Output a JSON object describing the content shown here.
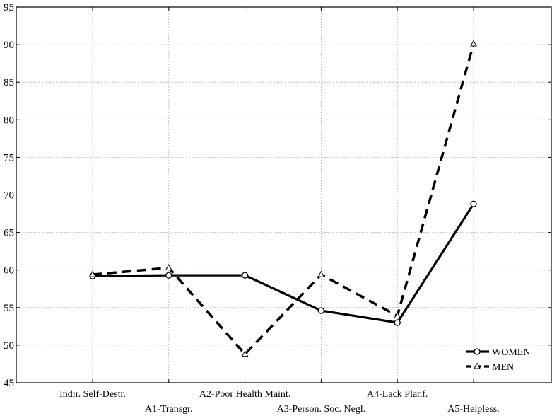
{
  "chart_data": {
    "type": "line",
    "title": "",
    "xlabel": "",
    "ylabel": "",
    "categories": [
      "Indir. Self-Destr.",
      "A1-Transgr.",
      "A2-Poor Health Maint.",
      "A3-Person. Soc. Negl.",
      "A4-Lack Planf.",
      "A5-Helpless."
    ],
    "ylim": [
      45,
      95
    ],
    "yticks": [
      45,
      50,
      55,
      60,
      65,
      70,
      75,
      80,
      85,
      90,
      95
    ],
    "grid": true,
    "legend_position": "bottom-right",
    "series": [
      {
        "name": "WOMEN",
        "values": [
          59.2,
          59.3,
          59.3,
          54.6,
          53.0,
          68.8
        ],
        "color": "#000000",
        "line": "solid",
        "marker": "circle"
      },
      {
        "name": "MEN",
        "values": [
          59.4,
          60.3,
          48.8,
          59.4,
          53.9,
          90.1
        ],
        "color": "#000000",
        "line": "dashed",
        "marker": "triangle"
      }
    ]
  }
}
